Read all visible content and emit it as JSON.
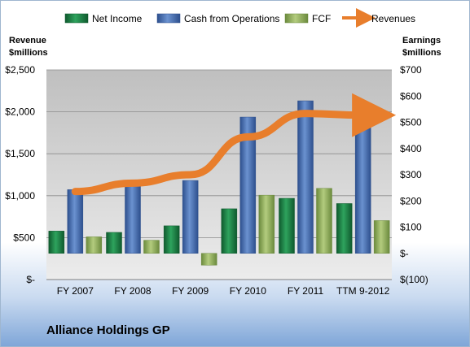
{
  "company_name": "Alliance Holdings GP",
  "chart_data": {
    "type": "bar",
    "categories": [
      "FY 2007",
      "FY 2008",
      "FY 2009",
      "FY 2010",
      "FY 2011",
      "TTM 9-2012"
    ],
    "series": [
      {
        "name": "Net Income",
        "axis": "right",
        "color": "#1e7f45",
        "values": [
          85,
          80,
          105,
          170,
          210,
          190
        ]
      },
      {
        "name": "Cash from Operations",
        "axis": "right",
        "color": "#4a74b8",
        "values": [
          243,
          262,
          278,
          520,
          582,
          572
        ]
      },
      {
        "name": "FCF",
        "axis": "right",
        "color": "#8fae5a",
        "values": [
          63,
          50,
          -45,
          222,
          248,
          125
        ]
      },
      {
        "name": "Revenues",
        "axis": "left",
        "type": "line",
        "color": "#e87e2c",
        "values": [
          1050,
          1150,
          1250,
          1700,
          1980,
          1960
        ]
      }
    ],
    "left_axis": {
      "title_lines": [
        "Revenue",
        "$millions"
      ],
      "ylim": [
        0,
        2500
      ],
      "ticks": [
        0,
        500,
        1000,
        1500,
        2000,
        2500
      ],
      "tick_labels": [
        "$-",
        "$500",
        "$1,000",
        "$1,500",
        "$2,000",
        "$2,500"
      ]
    },
    "right_axis": {
      "title_lines": [
        "Earnings",
        "$millions"
      ],
      "ylim": [
        -100,
        700
      ],
      "ticks": [
        -100,
        0,
        100,
        200,
        300,
        400,
        500,
        600,
        700
      ],
      "tick_labels": [
        "$(100)",
        "$-",
        "$100",
        "$200",
        "$300",
        "$400",
        "$500",
        "$600",
        "$700"
      ]
    },
    "legend_position": "top",
    "grid": true
  }
}
